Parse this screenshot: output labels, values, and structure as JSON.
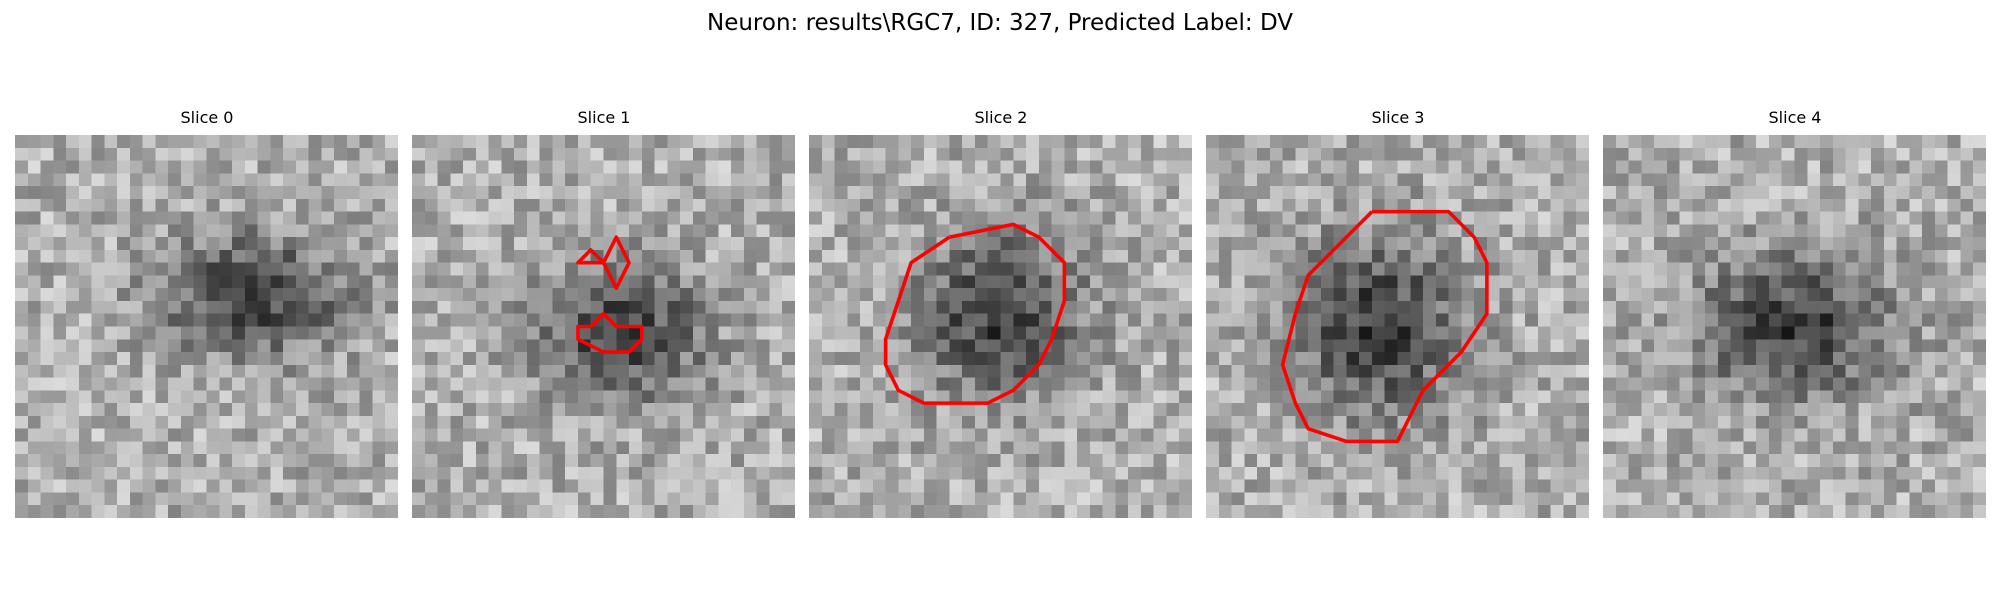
{
  "figure": {
    "title": "Neuron: results\\RGC7, ID: 327, Predicted Label: DV",
    "contour_color": "#ff0000",
    "slices": [
      {
        "title": "Slice 0",
        "blob": [
          0.62,
          0.42
        ],
        "spread": [
          0.22,
          0.15
        ],
        "seed": 11,
        "contours": []
      },
      {
        "title": "Slice 1",
        "blob": [
          0.55,
          0.52
        ],
        "spread": [
          0.2,
          0.16
        ],
        "seed": 23,
        "contours": [
          [
            [
              15,
              10
            ],
            [
              16,
              8
            ],
            [
              17,
              10
            ],
            [
              16,
              12
            ],
            [
              15,
              10
            ],
            [
              13,
              10
            ],
            [
              14,
              9
            ],
            [
              15,
              10
            ]
          ],
          [
            [
              14,
              15
            ],
            [
              15,
              14
            ],
            [
              16,
              15
            ],
            [
              18,
              15
            ],
            [
              18,
              16
            ],
            [
              17,
              17
            ],
            [
              15,
              17
            ],
            [
              13,
              16
            ],
            [
              13,
              15
            ],
            [
              14,
              15
            ]
          ]
        ]
      },
      {
        "title": "Slice 2",
        "blob": [
          0.5,
          0.47
        ],
        "spread": [
          0.2,
          0.2
        ],
        "seed": 37,
        "contours": [
          [
            [
              11,
              8
            ],
            [
              16,
              7
            ],
            [
              18,
              8
            ],
            [
              20,
              10
            ],
            [
              20,
              13
            ],
            [
              19,
              16
            ],
            [
              18,
              18
            ],
            [
              16,
              20
            ],
            [
              14,
              21
            ],
            [
              12,
              21
            ],
            [
              9,
              21
            ],
            [
              7,
              20
            ],
            [
              6,
              18
            ],
            [
              6,
              16
            ],
            [
              7,
              13
            ],
            [
              8,
              10
            ],
            [
              11,
              8
            ]
          ]
        ]
      },
      {
        "title": "Slice 3",
        "blob": [
          0.45,
          0.5
        ],
        "spread": [
          0.21,
          0.22
        ],
        "seed": 53,
        "contours": [
          [
            [
              13,
              6
            ],
            [
              15,
              6
            ],
            [
              19,
              6
            ],
            [
              21,
              8
            ],
            [
              22,
              10
            ],
            [
              22,
              14
            ],
            [
              20,
              17
            ],
            [
              17,
              20
            ],
            [
              16,
              22
            ],
            [
              15,
              24
            ],
            [
              11,
              24
            ],
            [
              8,
              23
            ],
            [
              7,
              21
            ],
            [
              6,
              18
            ],
            [
              7,
              14
            ],
            [
              8,
              11
            ],
            [
              10,
              9
            ],
            [
              12,
              7
            ],
            [
              13,
              6
            ]
          ]
        ]
      },
      {
        "title": "Slice 4",
        "blob": [
          0.5,
          0.5
        ],
        "spread": [
          0.24,
          0.17
        ],
        "seed": 71,
        "contours": []
      }
    ]
  }
}
